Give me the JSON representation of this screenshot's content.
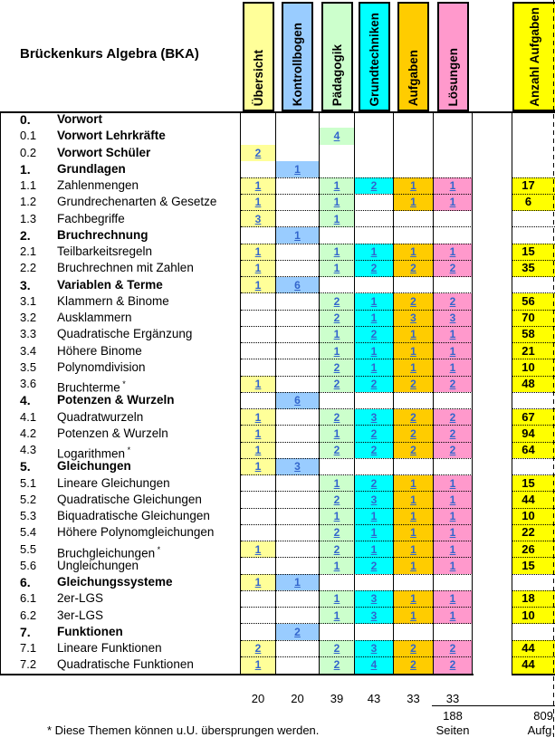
{
  "title": "Brückenkurs Algebra (BKA)",
  "columns": [
    {
      "key": "uebersicht",
      "label": "Übersicht",
      "color": "#FFFF99"
    },
    {
      "key": "kontrollbogen",
      "label": "Kontrollbogen",
      "color": "#99CCFF"
    },
    {
      "key": "paedagogik",
      "label": "Pädagogik",
      "color": "#CCFFCC"
    },
    {
      "key": "grundtechniken",
      "label": "Grundtechniken",
      "color": "#00FFFF"
    },
    {
      "key": "aufgaben",
      "label": "Aufgaben",
      "color": "#FFCC00"
    },
    {
      "key": "loesungen",
      "label": "Lösungen",
      "color": "#FF99CC"
    }
  ],
  "anzahl_column": {
    "key": "anzahl-aufgaben",
    "label": "Anzahl Aufgaben",
    "color": "#FFFF00"
  },
  "link_color": "#3366CC",
  "rows": [
    {
      "num": "0.",
      "label": "Vorwort",
      "section": true,
      "cells": [
        null,
        null,
        null,
        null,
        null,
        null
      ],
      "anzahl": null
    },
    {
      "num": "0.1",
      "label": "Vorwort Lehrkräfte",
      "bold": true,
      "cells": [
        null,
        null,
        4,
        null,
        null,
        null
      ],
      "anzahl": null
    },
    {
      "num": "0.2",
      "label": "Vorwort Schüler",
      "bold": true,
      "cells": [
        2,
        null,
        null,
        null,
        null,
        null
      ],
      "anzahl": null
    },
    {
      "num": "1.",
      "label": "Grundlagen",
      "section": true,
      "cells": [
        null,
        1,
        null,
        null,
        null,
        null
      ],
      "anzahl": null
    },
    {
      "num": "1.1",
      "label": "Zahlenmengen",
      "cells": [
        1,
        null,
        1,
        2,
        1,
        1
      ],
      "anzahl": 17
    },
    {
      "num": "1.2",
      "label": "Grundrechenarten & Gesetze",
      "cells": [
        1,
        null,
        1,
        null,
        1,
        1
      ],
      "anzahl": 6
    },
    {
      "num": "1.3",
      "label": "Fachbegriffe",
      "cells": [
        3,
        null,
        1,
        null,
        null,
        null
      ],
      "anzahl": null
    },
    {
      "num": "2.",
      "label": "Bruchrechnung",
      "section": true,
      "cells": [
        null,
        1,
        null,
        null,
        null,
        null
      ],
      "anzahl": null
    },
    {
      "num": "2.1",
      "label": "Teilbarkeitsregeln",
      "cells": [
        1,
        null,
        1,
        1,
        1,
        1
      ],
      "anzahl": 15
    },
    {
      "num": "2.2",
      "label": "Bruchrechnen mit Zahlen",
      "cells": [
        1,
        null,
        1,
        2,
        2,
        2
      ],
      "anzahl": 35
    },
    {
      "num": "3.",
      "label": "Variablen & Terme",
      "section": true,
      "cells": [
        1,
        6,
        null,
        null,
        null,
        null
      ],
      "anzahl": null
    },
    {
      "num": "3.1",
      "label": "Klammern & Binome",
      "cells": [
        null,
        null,
        2,
        1,
        2,
        2
      ],
      "anzahl": 56
    },
    {
      "num": "3.2",
      "label": "Ausklammern",
      "cells": [
        null,
        null,
        2,
        1,
        3,
        3
      ],
      "anzahl": 70
    },
    {
      "num": "3.3",
      "label": "Quadratische Ergänzung",
      "cells": [
        null,
        null,
        1,
        2,
        1,
        1
      ],
      "anzahl": 58
    },
    {
      "num": "3.4",
      "label": "Höhere Binome",
      "cells": [
        null,
        null,
        1,
        1,
        1,
        1
      ],
      "anzahl": 21
    },
    {
      "num": "3.5",
      "label": "Polynomdivision",
      "cells": [
        null,
        null,
        2,
        1,
        1,
        1
      ],
      "anzahl": 10
    },
    {
      "num": "3.6",
      "label": "Bruchterme",
      "asterisk": true,
      "cells": [
        1,
        null,
        2,
        2,
        2,
        2
      ],
      "anzahl": 48
    },
    {
      "num": "4.",
      "label": "Potenzen & Wurzeln",
      "section": true,
      "cells": [
        null,
        6,
        null,
        null,
        null,
        null
      ],
      "anzahl": null
    },
    {
      "num": "4.1",
      "label": "Quadratwurzeln",
      "cells": [
        1,
        null,
        2,
        3,
        2,
        2
      ],
      "anzahl": 67
    },
    {
      "num": "4.2",
      "label": "Potenzen & Wurzeln",
      "cells": [
        1,
        null,
        1,
        2,
        2,
        2
      ],
      "anzahl": 94
    },
    {
      "num": "4.3",
      "label": "Logarithmen",
      "asterisk": true,
      "cells": [
        1,
        null,
        2,
        2,
        2,
        2
      ],
      "anzahl": 64
    },
    {
      "num": "5.",
      "label": "Gleichungen",
      "section": true,
      "cells": [
        1,
        3,
        null,
        null,
        null,
        null
      ],
      "anzahl": null
    },
    {
      "num": "5.1",
      "label": "Lineare Gleichungen",
      "cells": [
        null,
        null,
        1,
        2,
        1,
        1
      ],
      "anzahl": 15
    },
    {
      "num": "5.2",
      "label": "Quadratische Gleichungen",
      "cells": [
        null,
        null,
        2,
        3,
        1,
        1
      ],
      "anzahl": 44
    },
    {
      "num": "5.3",
      "label": "Biquadratische Gleichungen",
      "cells": [
        null,
        null,
        1,
        1,
        1,
        1
      ],
      "anzahl": 10
    },
    {
      "num": "5.4",
      "label": "Höhere Polynomgleichungen",
      "cells": [
        null,
        null,
        2,
        1,
        1,
        1
      ],
      "anzahl": 22
    },
    {
      "num": "5.5",
      "label": "Bruchgleichungen",
      "asterisk": true,
      "cells": [
        1,
        null,
        2,
        1,
        1,
        1
      ],
      "anzahl": 26
    },
    {
      "num": "5.6",
      "label": "Ungleichungen",
      "cells": [
        null,
        null,
        1,
        2,
        1,
        1
      ],
      "anzahl": 15
    },
    {
      "num": "6.",
      "label": "Gleichungssysteme",
      "section": true,
      "cells": [
        1,
        1,
        null,
        null,
        null,
        null
      ],
      "anzahl": null
    },
    {
      "num": "6.1",
      "label": "2er-LGS",
      "cells": [
        null,
        null,
        1,
        3,
        1,
        1
      ],
      "anzahl": 18
    },
    {
      "num": "6.2",
      "label": "3er-LGS",
      "cells": [
        null,
        null,
        1,
        3,
        1,
        1
      ],
      "anzahl": 10
    },
    {
      "num": "7.",
      "label": "Funktionen",
      "section": true,
      "cells": [
        null,
        2,
        null,
        null,
        null,
        null
      ],
      "anzahl": null
    },
    {
      "num": "7.1",
      "label": "Lineare Funktionen",
      "cells": [
        2,
        null,
        2,
        3,
        2,
        2
      ],
      "anzahl": 44
    },
    {
      "num": "7.2",
      "label": "Quadratische Funktionen",
      "cells": [
        1,
        null,
        2,
        4,
        2,
        2
      ],
      "anzahl": 44
    }
  ],
  "footer": {
    "column_totals": [
      20,
      20,
      39,
      43,
      33,
      33
    ],
    "pages_total": "188",
    "pages_label": "Seiten",
    "tasks_total": "809",
    "tasks_label": "Aufg.",
    "footnote": "* Diese Themen können u.U. übersprungen werden."
  }
}
